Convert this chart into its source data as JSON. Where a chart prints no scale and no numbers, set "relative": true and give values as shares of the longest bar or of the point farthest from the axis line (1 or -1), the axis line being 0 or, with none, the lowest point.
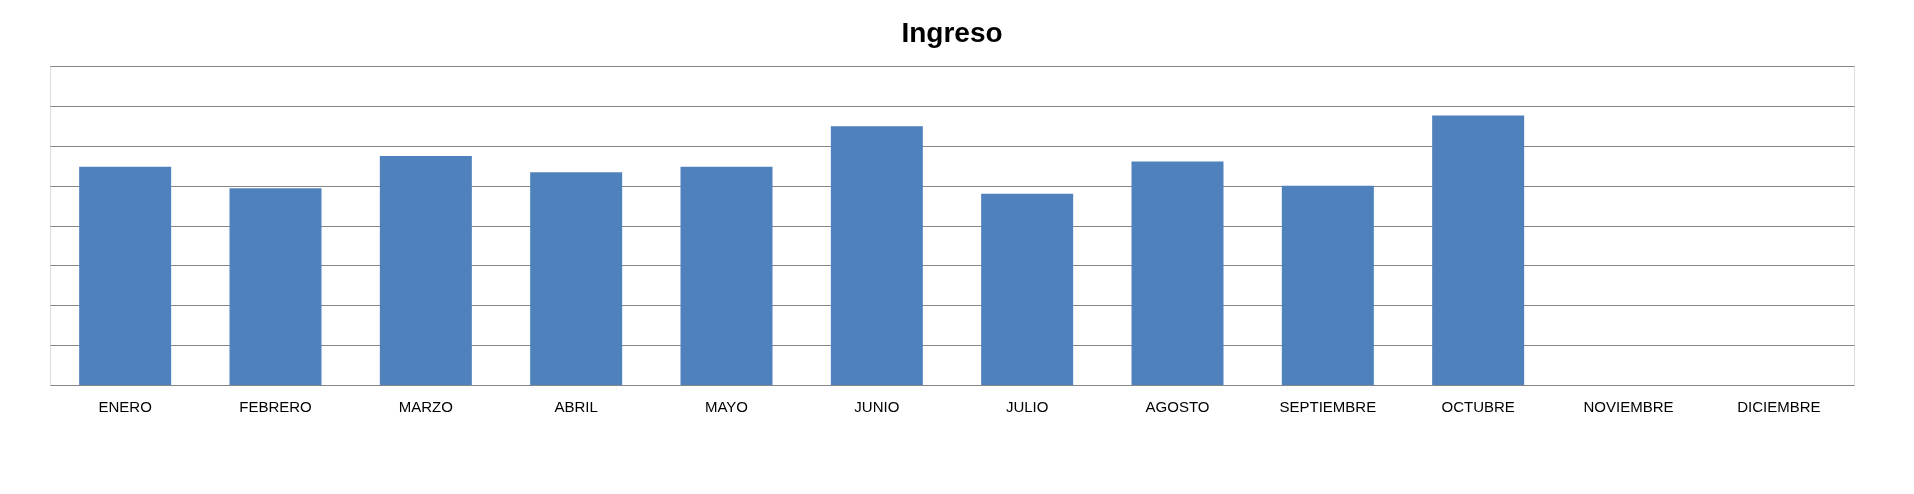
{
  "chart_data": {
    "type": "bar",
    "title": "Ingreso",
    "categories": [
      "ENERO",
      "FEBRERO",
      "MARZO",
      "ABRIL",
      "MAYO",
      "JUNIO",
      "JULIO",
      "AGOSTO",
      "SEPTIEMBRE",
      "OCTUBRE",
      "NOVIEMBRE",
      "DICIEMBRE"
    ],
    "values": [
      0.81,
      0.73,
      0.85,
      0.79,
      0.81,
      0.96,
      0.71,
      0.83,
      0.74,
      1,
      null,
      null
    ],
    "color": "#4f81bd",
    "relative": true,
    "grid": "y"
  }
}
